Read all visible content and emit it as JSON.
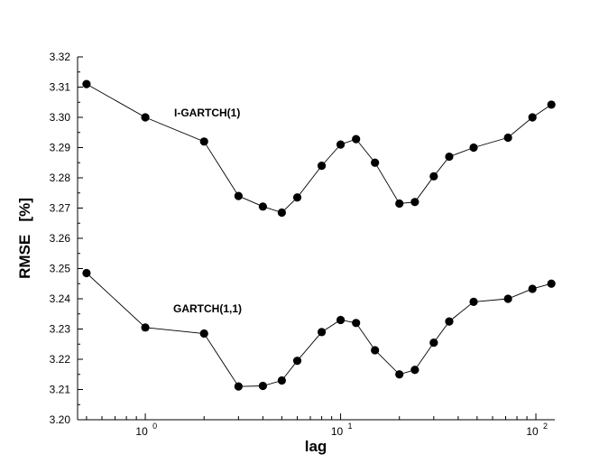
{
  "chart_data": {
    "type": "line",
    "xlabel": "lag",
    "ylabel": "RMSE   [%]",
    "xscale": "log",
    "xlim": [
      0.45,
      125
    ],
    "ylim": [
      3.2,
      3.32
    ],
    "yticks": [
      "3.20",
      "3.21",
      "3.22",
      "3.23",
      "3.24",
      "3.25",
      "3.26",
      "3.27",
      "3.28",
      "3.29",
      "3.30",
      "3.31",
      "3.32"
    ],
    "xticks": [
      {
        "base": "10",
        "exp": "0",
        "value": 1
      },
      {
        "base": "10",
        "exp": "1",
        "value": 10
      },
      {
        "base": "10",
        "exp": "2",
        "value": 100
      }
    ],
    "grid": false,
    "legend": "none",
    "series": [
      {
        "name": "I-GARTCH(1)",
        "x": [
          0.5,
          1,
          2,
          3,
          4,
          5,
          6,
          8,
          10,
          12,
          15,
          20,
          24,
          30,
          36,
          48,
          72,
          96,
          120
        ],
        "y": [
          3.311,
          3.3,
          3.292,
          3.274,
          3.2705,
          3.2685,
          3.2735,
          3.284,
          3.291,
          3.2928,
          3.285,
          3.2715,
          3.272,
          3.2805,
          3.287,
          3.29,
          3.2933,
          3.3,
          3.3042
        ]
      },
      {
        "name": "GARTCH(1,1)",
        "x": [
          0.5,
          1,
          2,
          3,
          4,
          5,
          6,
          8,
          10,
          12,
          15,
          20,
          24,
          30,
          36,
          48,
          72,
          96,
          120
        ],
        "y": [
          3.2485,
          3.2305,
          3.2285,
          3.211,
          3.2112,
          3.213,
          3.2195,
          3.229,
          3.233,
          3.232,
          3.223,
          3.215,
          3.2165,
          3.2255,
          3.2325,
          3.239,
          3.24,
          3.2433,
          3.245
        ]
      }
    ]
  }
}
